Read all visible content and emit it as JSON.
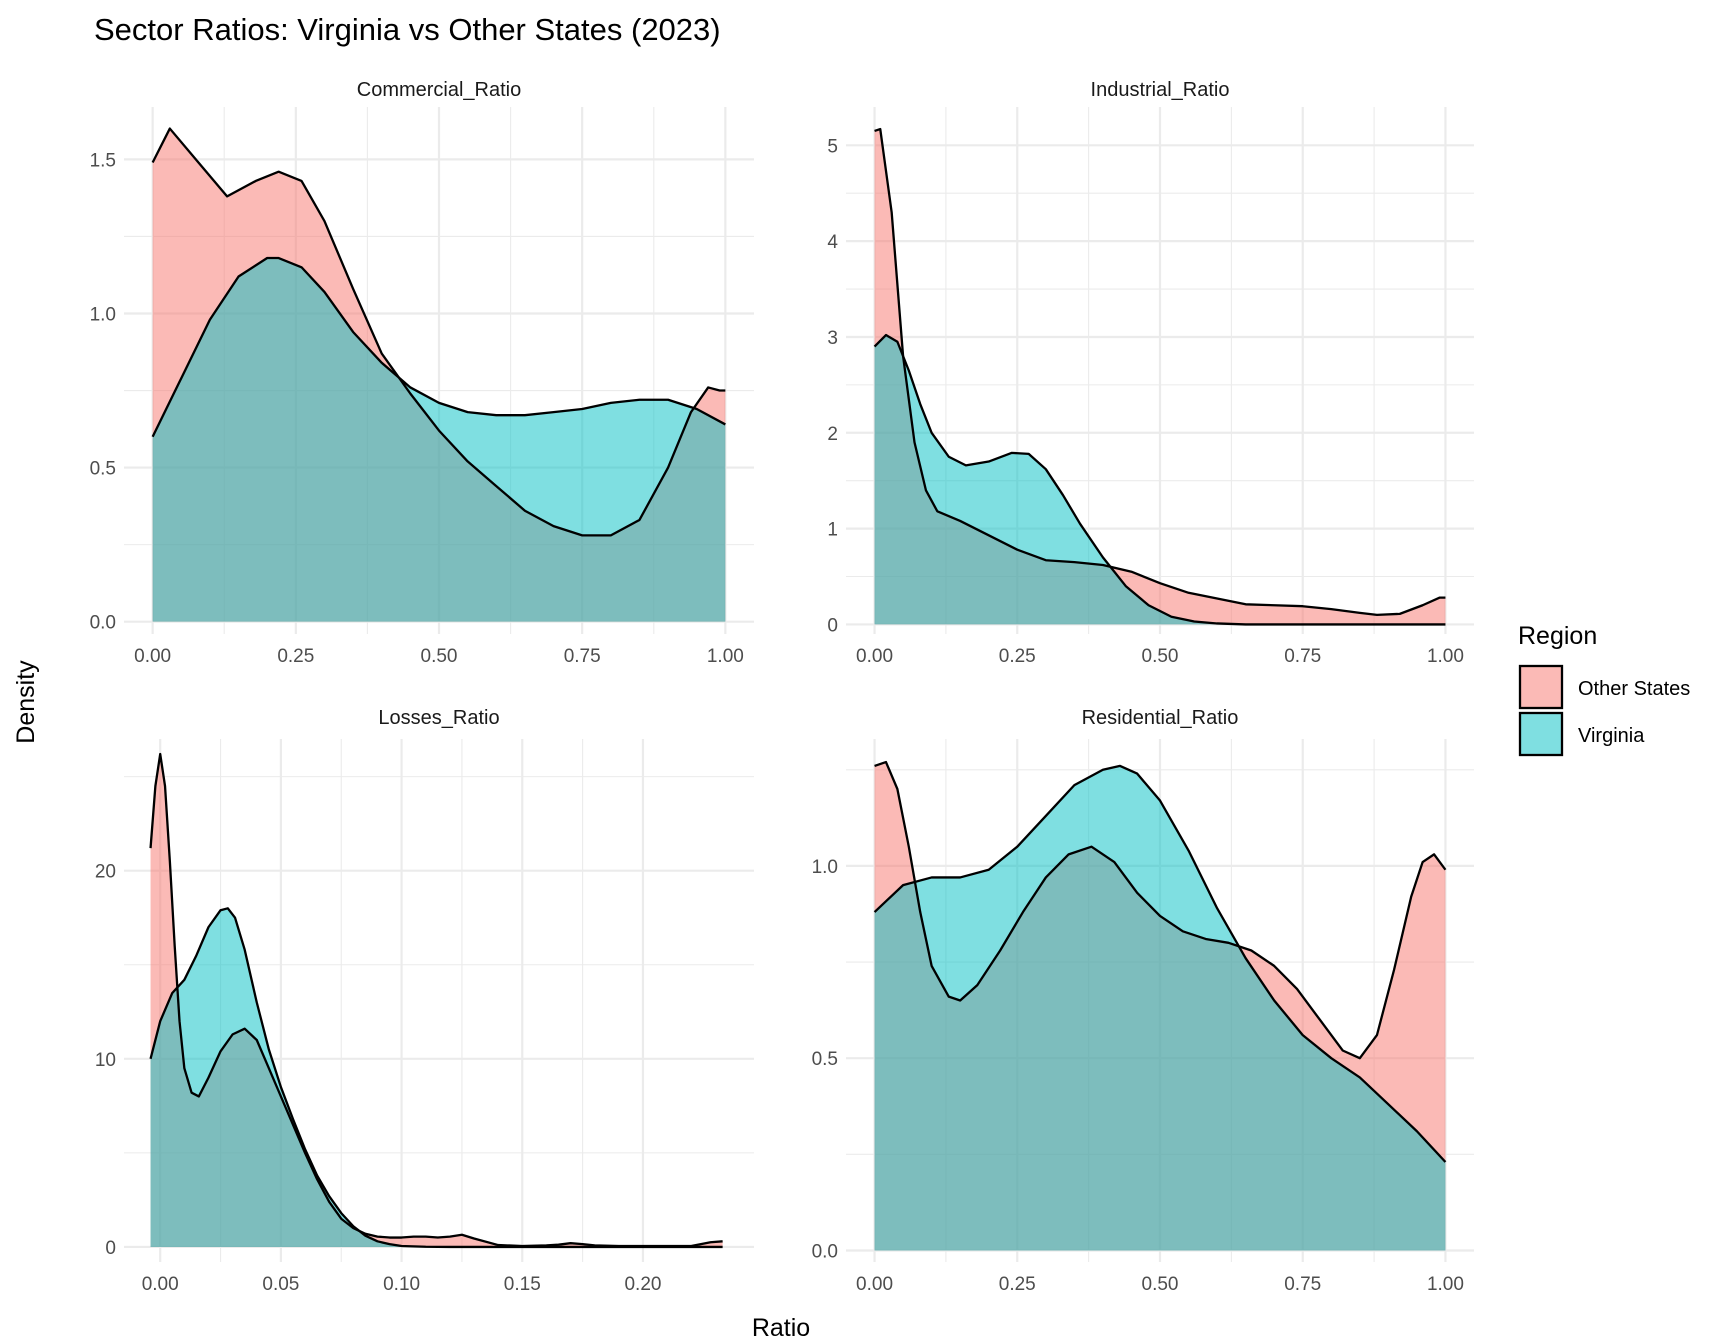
{
  "chart_data": {
    "type": "area",
    "title": "Sector Ratios: Virginia vs Other States (2023)",
    "xlabel": "Ratio",
    "ylabel": "Density",
    "grid": true,
    "legend": {
      "title": "Region",
      "placement": "right",
      "entries": [
        {
          "label": "Other States",
          "color": "#F8766D"
        },
        {
          "label": "Virginia",
          "color": "#00BFC4"
        }
      ]
    },
    "fill_alpha": 0.5,
    "panels": [
      {
        "name": "Commercial_Ratio",
        "xlim": [
          -0.05,
          1.05
        ],
        "ylim": [
          -0.04,
          1.67
        ],
        "xticks": [
          {
            "v": 0,
            "label": "0.00"
          },
          {
            "v": 0.25,
            "label": "0.25"
          },
          {
            "v": 0.5,
            "label": "0.50"
          },
          {
            "v": 0.75,
            "label": "0.75"
          },
          {
            "v": 1,
            "label": "1.00"
          }
        ],
        "yticks": [
          {
            "v": 0,
            "label": "0.0"
          },
          {
            "v": 0.5,
            "label": "0.5"
          },
          {
            "v": 1,
            "label": "1.0"
          },
          {
            "v": 1.5,
            "label": "1.5"
          }
        ],
        "series": [
          {
            "name": "Other States",
            "x": [
              0,
              0.03,
              0.08,
              0.13,
              0.18,
              0.22,
              0.26,
              0.3,
              0.35,
              0.4,
              0.45,
              0.5,
              0.55,
              0.6,
              0.65,
              0.7,
              0.75,
              0.8,
              0.85,
              0.9,
              0.94,
              0.97,
              0.99,
              1.0
            ],
            "y": [
              1.49,
              1.6,
              1.49,
              1.38,
              1.43,
              1.46,
              1.43,
              1.3,
              1.08,
              0.87,
              0.74,
              0.62,
              0.52,
              0.44,
              0.36,
              0.31,
              0.28,
              0.28,
              0.33,
              0.5,
              0.68,
              0.76,
              0.75,
              0.75
            ]
          },
          {
            "name": "Virginia",
            "x": [
              0,
              0.05,
              0.1,
              0.15,
              0.2,
              0.22,
              0.26,
              0.3,
              0.35,
              0.4,
              0.45,
              0.5,
              0.55,
              0.6,
              0.65,
              0.7,
              0.75,
              0.8,
              0.85,
              0.9,
              0.95,
              1.0
            ],
            "y": [
              0.6,
              0.79,
              0.98,
              1.12,
              1.18,
              1.18,
              1.15,
              1.07,
              0.94,
              0.84,
              0.76,
              0.71,
              0.68,
              0.67,
              0.67,
              0.68,
              0.69,
              0.71,
              0.72,
              0.72,
              0.69,
              0.64
            ]
          }
        ]
      },
      {
        "name": "Industrial_Ratio",
        "xlim": [
          -0.05,
          1.05
        ],
        "ylim": [
          -0.1,
          5.4
        ],
        "xticks": [
          {
            "v": 0,
            "label": "0.00"
          },
          {
            "v": 0.25,
            "label": "0.25"
          },
          {
            "v": 0.5,
            "label": "0.50"
          },
          {
            "v": 0.75,
            "label": "0.75"
          },
          {
            "v": 1,
            "label": "1.00"
          }
        ],
        "yticks": [
          {
            "v": 0,
            "label": "0"
          },
          {
            "v": 1,
            "label": "1"
          },
          {
            "v": 2,
            "label": "2"
          },
          {
            "v": 3,
            "label": "3"
          },
          {
            "v": 4,
            "label": "4"
          },
          {
            "v": 5,
            "label": "5"
          }
        ],
        "series": [
          {
            "name": "Other States",
            "x": [
              0,
              0.01,
              0.03,
              0.05,
              0.07,
              0.09,
              0.11,
              0.15,
              0.2,
              0.25,
              0.3,
              0.35,
              0.4,
              0.45,
              0.5,
              0.55,
              0.6,
              0.65,
              0.7,
              0.75,
              0.8,
              0.85,
              0.88,
              0.92,
              0.96,
              0.99,
              1.0
            ],
            "y": [
              5.15,
              5.17,
              4.3,
              2.8,
              1.9,
              1.4,
              1.18,
              1.08,
              0.93,
              0.78,
              0.67,
              0.65,
              0.62,
              0.55,
              0.43,
              0.33,
              0.27,
              0.21,
              0.2,
              0.19,
              0.16,
              0.12,
              0.1,
              0.11,
              0.2,
              0.28,
              0.28
            ]
          },
          {
            "name": "Virginia",
            "x": [
              0,
              0.02,
              0.04,
              0.06,
              0.08,
              0.1,
              0.13,
              0.16,
              0.2,
              0.24,
              0.27,
              0.3,
              0.33,
              0.36,
              0.4,
              0.44,
              0.48,
              0.52,
              0.56,
              0.6,
              0.65,
              0.7,
              0.8,
              0.9,
              1.0
            ],
            "y": [
              2.9,
              3.02,
              2.95,
              2.65,
              2.3,
              2.0,
              1.75,
              1.66,
              1.7,
              1.79,
              1.78,
              1.62,
              1.35,
              1.05,
              0.7,
              0.4,
              0.2,
              0.08,
              0.03,
              0.01,
              0.0,
              0.0,
              0.0,
              0.0,
              0.0
            ]
          }
        ]
      },
      {
        "name": "Losses_Ratio",
        "xlim": [
          -0.015,
          0.246
        ],
        "ylim": [
          -0.8,
          27.0
        ],
        "xticks": [
          {
            "v": 0,
            "label": "0.00"
          },
          {
            "v": 0.05,
            "label": "0.05"
          },
          {
            "v": 0.1,
            "label": "0.10"
          },
          {
            "v": 0.15,
            "label": "0.15"
          },
          {
            "v": 0.2,
            "label": "0.20"
          }
        ],
        "yticks": [
          {
            "v": 0,
            "label": "0"
          },
          {
            "v": 10,
            "label": "10"
          },
          {
            "v": 20,
            "label": "20"
          }
        ],
        "series": [
          {
            "name": "Other States",
            "x": [
              -0.004,
              -0.002,
              0.0,
              0.002,
              0.004,
              0.006,
              0.008,
              0.01,
              0.013,
              0.016,
              0.02,
              0.025,
              0.03,
              0.035,
              0.04,
              0.045,
              0.05,
              0.055,
              0.06,
              0.065,
              0.07,
              0.075,
              0.08,
              0.085,
              0.09,
              0.095,
              0.1,
              0.105,
              0.11,
              0.115,
              0.12,
              0.125,
              0.13,
              0.14,
              0.15,
              0.16,
              0.165,
              0.17,
              0.175,
              0.18,
              0.19,
              0.2,
              0.21,
              0.22,
              0.228,
              0.233
            ],
            "y": [
              21.2,
              24.5,
              26.2,
              24.5,
              20.5,
              16.0,
              12.0,
              9.5,
              8.2,
              8.0,
              9.0,
              10.4,
              11.3,
              11.6,
              11.0,
              9.5,
              8.0,
              6.5,
              5.0,
              3.6,
              2.4,
              1.5,
              1.0,
              0.7,
              0.55,
              0.5,
              0.5,
              0.55,
              0.55,
              0.5,
              0.55,
              0.65,
              0.45,
              0.1,
              0.05,
              0.08,
              0.12,
              0.2,
              0.15,
              0.08,
              0.05,
              0.05,
              0.05,
              0.05,
              0.25,
              0.3
            ]
          },
          {
            "name": "Virginia",
            "x": [
              -0.004,
              0.0,
              0.005,
              0.01,
              0.015,
              0.02,
              0.025,
              0.028,
              0.031,
              0.035,
              0.04,
              0.045,
              0.05,
              0.055,
              0.06,
              0.065,
              0.07,
              0.075,
              0.08,
              0.085,
              0.09,
              0.095,
              0.1,
              0.11,
              0.12,
              0.15,
              0.2,
              0.233
            ],
            "y": [
              10.0,
              12.0,
              13.5,
              14.2,
              15.5,
              17.0,
              17.9,
              18.0,
              17.5,
              15.8,
              13.0,
              10.5,
              8.5,
              6.8,
              5.2,
              3.8,
              2.7,
              1.8,
              1.1,
              0.6,
              0.3,
              0.15,
              0.05,
              0.01,
              0.0,
              0.0,
              0.0,
              0.0
            ]
          }
        ]
      },
      {
        "name": "Residential_Ratio",
        "xlim": [
          -0.05,
          1.05
        ],
        "ylim": [
          -0.03,
          1.33
        ],
        "xticks": [
          {
            "v": 0,
            "label": "0.00"
          },
          {
            "v": 0.25,
            "label": "0.25"
          },
          {
            "v": 0.5,
            "label": "0.50"
          },
          {
            "v": 0.75,
            "label": "0.75"
          },
          {
            "v": 1,
            "label": "1.00"
          }
        ],
        "yticks": [
          {
            "v": 0,
            "label": "0.0"
          },
          {
            "v": 0.5,
            "label": "0.5"
          },
          {
            "v": 1,
            "label": "1.0"
          }
        ],
        "series": [
          {
            "name": "Other States",
            "x": [
              0,
              0.02,
              0.04,
              0.06,
              0.08,
              0.1,
              0.13,
              0.15,
              0.18,
              0.22,
              0.26,
              0.3,
              0.34,
              0.38,
              0.42,
              0.46,
              0.5,
              0.54,
              0.58,
              0.62,
              0.66,
              0.7,
              0.74,
              0.78,
              0.82,
              0.85,
              0.88,
              0.91,
              0.94,
              0.96,
              0.98,
              1.0
            ],
            "y": [
              1.26,
              1.27,
              1.2,
              1.05,
              0.88,
              0.74,
              0.66,
              0.65,
              0.69,
              0.78,
              0.88,
              0.97,
              1.03,
              1.05,
              1.01,
              0.93,
              0.87,
              0.83,
              0.81,
              0.8,
              0.78,
              0.74,
              0.68,
              0.6,
              0.52,
              0.5,
              0.56,
              0.73,
              0.92,
              1.01,
              1.03,
              0.99
            ]
          },
          {
            "name": "Virginia",
            "x": [
              0,
              0.05,
              0.1,
              0.15,
              0.2,
              0.25,
              0.3,
              0.35,
              0.4,
              0.43,
              0.46,
              0.5,
              0.55,
              0.6,
              0.65,
              0.7,
              0.75,
              0.8,
              0.85,
              0.9,
              0.95,
              1.0
            ],
            "y": [
              0.88,
              0.95,
              0.97,
              0.97,
              0.99,
              1.05,
              1.13,
              1.21,
              1.25,
              1.26,
              1.24,
              1.17,
              1.04,
              0.89,
              0.76,
              0.65,
              0.56,
              0.5,
              0.45,
              0.38,
              0.31,
              0.23
            ]
          }
        ]
      }
    ]
  }
}
